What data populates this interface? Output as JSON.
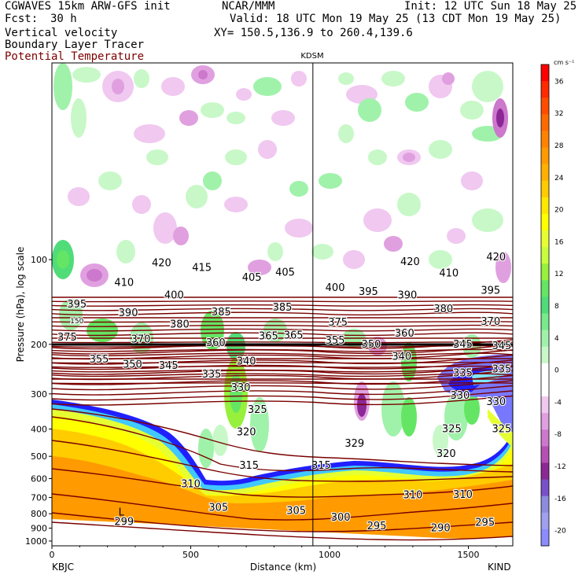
{
  "header": {
    "model": "CGWAVES 15km ARW-GFS init",
    "org": "NCAR/MMM",
    "init": "Init: 12 UTC Sun 18 May 25",
    "fcst_label": "Fcst:",
    "fcst_value": "30 h",
    "valid": "Valid: 18 UTC Mon 19 May 25 (13 CDT Mon 19 May 25)",
    "field1": "Vertical velocity",
    "field2": "Boundary Layer Tracer",
    "field3": "Potential Temperature",
    "xy": "XY= 150.5,136.9 to 260.4,139.6"
  },
  "chart_data": {
    "type": "heatmap",
    "ylabel": "Pressure (hPa), log scale",
    "xlabel": "Distance (km)",
    "station_top": "KDSM",
    "station_left": "KBJC",
    "station_right": "KIND",
    "x_ticks": [
      "0",
      "500",
      "1000",
      "1500"
    ],
    "x_tick_values": [
      0,
      500,
      1000,
      1500
    ],
    "xlim": [
      0,
      1660
    ],
    "y_ticks": [
      "100",
      "200",
      "300",
      "400",
      "500",
      "600",
      "700",
      "800",
      "900",
      "1000"
    ],
    "y_tick_values": [
      100,
      200,
      300,
      400,
      500,
      600,
      700,
      800,
      900,
      1000
    ],
    "ylim": [
      1040,
      20
    ],
    "y_scale": "log",
    "marker_line_km": 940,
    "colorbar": {
      "unit": "cm s⁻¹",
      "labels": [
        "36",
        "32",
        "28",
        "24",
        "20",
        "16",
        "12",
        "8",
        "4",
        "0",
        "-4",
        "-8",
        "-12",
        "-16",
        "-20"
      ],
      "label_values": [
        36,
        32,
        28,
        24,
        20,
        16,
        12,
        8,
        4,
        0,
        -4,
        -8,
        -12,
        -16,
        -20
      ],
      "colors": [
        "#ff0000",
        "#ff2a00",
        "#ff4d00",
        "#ff6a00",
        "#ff8200",
        "#ff9a00",
        "#ffb000",
        "#ffcc00",
        "#ffe800",
        "#ffff00",
        "#e6ff33",
        "#c8ff3c",
        "#96f03c",
        "#64e664",
        "#50dc78",
        "#78ea8c",
        "#a0f2aa",
        "#c8f8c8",
        "#ffffff",
        "#ffffff",
        "#f0c8f0",
        "#e0a0e0",
        "#cc78cc",
        "#b450b4",
        "#8c2896",
        "#7850c8",
        "#8c8cdc",
        "#a0a0f0",
        "#8c8cff"
      ]
    },
    "contour_labels": {
      "theta": [
        {
          "t": "420",
          "km": 395,
          "p": 103
        },
        {
          "t": "415",
          "km": 540,
          "p": 107
        },
        {
          "t": "405",
          "km": 720,
          "p": 116
        },
        {
          "t": "405",
          "km": 840,
          "p": 111
        },
        {
          "t": "410",
          "km": 260,
          "p": 121
        },
        {
          "t": "400",
          "km": 440,
          "p": 134
        },
        {
          "t": "395",
          "km": 90,
          "p": 144
        },
        {
          "t": "390",
          "km": 275,
          "p": 155
        },
        {
          "t": "385",
          "km": 610,
          "p": 154
        },
        {
          "t": "385",
          "km": 830,
          "p": 148
        },
        {
          "t": "380",
          "km": 460,
          "p": 170
        },
        {
          "t": "375",
          "km": 55,
          "p": 189
        },
        {
          "t": "370",
          "km": 320,
          "p": 192
        },
        {
          "t": "365",
          "km": 780,
          "p": 187
        },
        {
          "t": "365",
          "km": 870,
          "p": 186
        },
        {
          "t": "360",
          "km": 590,
          "p": 198
        },
        {
          "t": "355",
          "km": 170,
          "p": 226
        },
        {
          "t": "350",
          "km": 290,
          "p": 236
        },
        {
          "t": "345",
          "km": 420,
          "p": 238
        },
        {
          "t": "340",
          "km": 700,
          "p": 230
        },
        {
          "t": "335",
          "km": 575,
          "p": 256
        },
        {
          "t": "330",
          "km": 680,
          "p": 285
        },
        {
          "t": "325",
          "km": 740,
          "p": 342
        },
        {
          "t": "320",
          "km": 700,
          "p": 410
        },
        {
          "t": "315",
          "km": 710,
          "p": 540
        },
        {
          "t": "310",
          "km": 500,
          "p": 628
        },
        {
          "t": "305",
          "km": 600,
          "p": 760
        },
        {
          "t": "305",
          "km": 880,
          "p": 780
        },
        {
          "t": "300",
          "km": 1040,
          "p": 825
        },
        {
          "t": "295",
          "km": 1170,
          "p": 885
        },
        {
          "t": "299",
          "km": 260,
          "p": 855
        },
        {
          "t": "420",
          "km": 1290,
          "p": 102
        },
        {
          "t": "410",
          "km": 1430,
          "p": 112
        },
        {
          "t": "420",
          "km": 1600,
          "p": 98
        },
        {
          "t": "400",
          "km": 1020,
          "p": 126
        },
        {
          "t": "395",
          "km": 1140,
          "p": 130
        },
        {
          "t": "390",
          "km": 1280,
          "p": 134
        },
        {
          "t": "395",
          "km": 1580,
          "p": 129
        },
        {
          "t": "380",
          "km": 1410,
          "p": 150
        },
        {
          "t": "375",
          "km": 1030,
          "p": 167
        },
        {
          "t": "370",
          "km": 1580,
          "p": 166
        },
        {
          "t": "360",
          "km": 1270,
          "p": 183
        },
        {
          "t": "355",
          "km": 1020,
          "p": 194
        },
        {
          "t": "350",
          "km": 1150,
          "p": 200
        },
        {
          "t": "345",
          "km": 1480,
          "p": 200
        },
        {
          "t": "345",
          "km": 1620,
          "p": 203
        },
        {
          "t": "340",
          "km": 1260,
          "p": 221
        },
        {
          "t": "335",
          "km": 1480,
          "p": 253
        },
        {
          "t": "335",
          "km": 1620,
          "p": 245
        },
        {
          "t": "330",
          "km": 1470,
          "p": 304
        },
        {
          "t": "330",
          "km": 1600,
          "p": 320
        },
        {
          "t": "325",
          "km": 1440,
          "p": 400
        },
        {
          "t": "325",
          "km": 1620,
          "p": 400
        },
        {
          "t": "320",
          "km": 1420,
          "p": 490
        },
        {
          "t": "329",
          "km": 1090,
          "p": 450
        },
        {
          "t": "315",
          "km": 970,
          "p": 540
        },
        {
          "t": "310",
          "km": 1300,
          "p": 687
        },
        {
          "t": "310",
          "km": 1480,
          "p": 685
        },
        {
          "t": "295",
          "km": 1560,
          "p": 860
        },
        {
          "t": "290",
          "km": 1400,
          "p": 900
        },
        {
          "t": "150",
          "km": 90,
          "p": 164
        }
      ],
      "lows": [
        {
          "t": "L",
          "km": 250,
          "p": 790
        }
      ]
    }
  }
}
